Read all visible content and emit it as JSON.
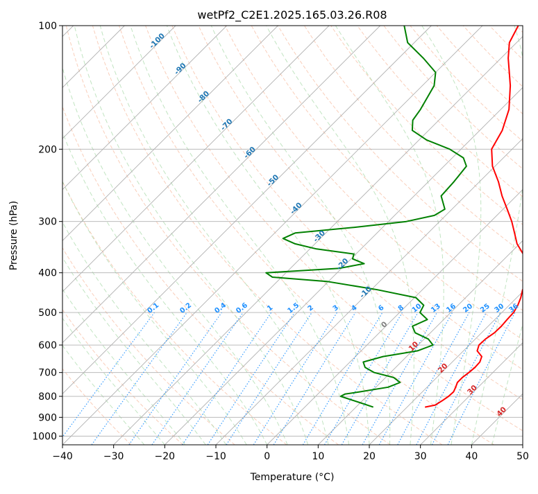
{
  "chart_data": {
    "type": "line",
    "title": "wetPf2_C2E1.2025.165.03.26.R08",
    "xlabel": "Temperature (°C)",
    "ylabel": "Pressure (hPa)",
    "xlim": [
      -40,
      50
    ],
    "ylim": [
      1050,
      100
    ],
    "y_scale": "log",
    "skew": "skew-T diagram",
    "grid": true,
    "x_ticks": [
      -40,
      -30,
      -20,
      -10,
      0,
      10,
      20,
      30,
      40,
      50
    ],
    "y_ticks": [
      100,
      200,
      300,
      400,
      500,
      600,
      700,
      800,
      900,
      1000
    ],
    "series": [
      {
        "name": "",
        "color": "#ff0000",
        "profile": [
          [
            850,
            23.5
          ],
          [
            840,
            25.1
          ],
          [
            820,
            25.6
          ],
          [
            800,
            26.0
          ],
          [
            780,
            26.1
          ],
          [
            760,
            25.6
          ],
          [
            740,
            25.0
          ],
          [
            720,
            25.0
          ],
          [
            700,
            25.3
          ],
          [
            680,
            25.5
          ],
          [
            660,
            25.4
          ],
          [
            640,
            24.7
          ],
          [
            620,
            22.7
          ],
          [
            600,
            21.9
          ],
          [
            580,
            22.0
          ],
          [
            560,
            22.5
          ],
          [
            540,
            22.6
          ],
          [
            520,
            22.4
          ],
          [
            500,
            22.3
          ],
          [
            480,
            21.7
          ],
          [
            460,
            20.8
          ],
          [
            440,
            19.6
          ],
          [
            420,
            19.6
          ],
          [
            400,
            18.4
          ],
          [
            380,
            15.7
          ],
          [
            360,
            12.7
          ],
          [
            340,
            9.5
          ],
          [
            320,
            6.9
          ],
          [
            300,
            4.1
          ],
          [
            280,
            0.8
          ],
          [
            260,
            -2.8
          ],
          [
            240,
            -6.3
          ],
          [
            220,
            -10.5
          ],
          [
            200,
            -14.0
          ],
          [
            180,
            -15.6
          ],
          [
            160,
            -18.4
          ],
          [
            140,
            -22.8
          ],
          [
            120,
            -28.6
          ],
          [
            110,
            -31.4
          ],
          [
            100,
            -33.0
          ]
        ]
      },
      {
        "name": "",
        "color": "#008000",
        "profile": [
          [
            850,
            13.4
          ],
          [
            830,
            10.1
          ],
          [
            800,
            4.9
          ],
          [
            790,
            5.3
          ],
          [
            780,
            7.8
          ],
          [
            760,
            12.4
          ],
          [
            740,
            13.8
          ],
          [
            720,
            11.6
          ],
          [
            700,
            6.8
          ],
          [
            680,
            4.0
          ],
          [
            660,
            2.6
          ],
          [
            640,
            5.4
          ],
          [
            620,
            11.0
          ],
          [
            600,
            12.9
          ],
          [
            580,
            10.8
          ],
          [
            560,
            7.0
          ],
          [
            540,
            5.2
          ],
          [
            520,
            6.8
          ],
          [
            500,
            4.0
          ],
          [
            480,
            3.3
          ],
          [
            460,
            0.3
          ],
          [
            440,
            -8.8
          ],
          [
            420,
            -20.3
          ],
          [
            410,
            -31.8
          ],
          [
            400,
            -33.9
          ],
          [
            390,
            -20.4
          ],
          [
            380,
            -16.5
          ],
          [
            370,
            -19.7
          ],
          [
            360,
            -20.4
          ],
          [
            350,
            -28.7
          ],
          [
            340,
            -33.9
          ],
          [
            330,
            -37.3
          ],
          [
            320,
            -36.0
          ],
          [
            310,
            -25.5
          ],
          [
            300,
            -16.5
          ],
          [
            290,
            -12.2
          ],
          [
            280,
            -11.4
          ],
          [
            260,
            -14.7
          ],
          [
            240,
            -15.0
          ],
          [
            220,
            -15.6
          ],
          [
            210,
            -17.8
          ],
          [
            200,
            -22.2
          ],
          [
            190,
            -28.5
          ],
          [
            180,
            -33.2
          ],
          [
            170,
            -35.1
          ],
          [
            160,
            -35.7
          ],
          [
            140,
            -37.7
          ],
          [
            130,
            -40.0
          ],
          [
            120,
            -45.2
          ],
          [
            110,
            -51.3
          ],
          [
            100,
            -55.3
          ]
        ]
      }
    ],
    "isotherm_labels": [
      {
        "text": "-100",
        "color": "#1f77b4"
      },
      {
        "text": "-90",
        "color": "#1f77b4"
      },
      {
        "text": "-80",
        "color": "#1f77b4"
      },
      {
        "text": "-70",
        "color": "#1f77b4"
      },
      {
        "text": "-60",
        "color": "#1f77b4"
      },
      {
        "text": "-50",
        "color": "#1f77b4"
      },
      {
        "text": "-40",
        "color": "#1f77b4"
      },
      {
        "text": "-30",
        "color": "#1f77b4"
      },
      {
        "text": "-20",
        "color": "#1f77b4"
      },
      {
        "text": "-10",
        "color": "#1f77b4"
      },
      {
        "text": "0",
        "color": "#7f7f7f"
      },
      {
        "text": "10",
        "color": "#d62728"
      },
      {
        "text": "20",
        "color": "#d62728"
      },
      {
        "text": "30",
        "color": "#d62728"
      },
      {
        "text": "40",
        "color": "#d62728"
      }
    ],
    "mixing_ratio_labels": [
      "0.1",
      "0.2",
      "0.4",
      "0.6",
      "1",
      "1.5",
      "2",
      "3",
      "4",
      "6",
      "8",
      "10",
      "13",
      "16",
      "20",
      "25",
      "30",
      "36"
    ],
    "line_colors": {
      "isotherm": "#b0b0b0",
      "dry_adiabat": "#f4a582",
      "moist_adiabat": "#a6d9a6",
      "mixing_ratio": "#1e90ff",
      "isobar": "#b0b0b0"
    }
  }
}
